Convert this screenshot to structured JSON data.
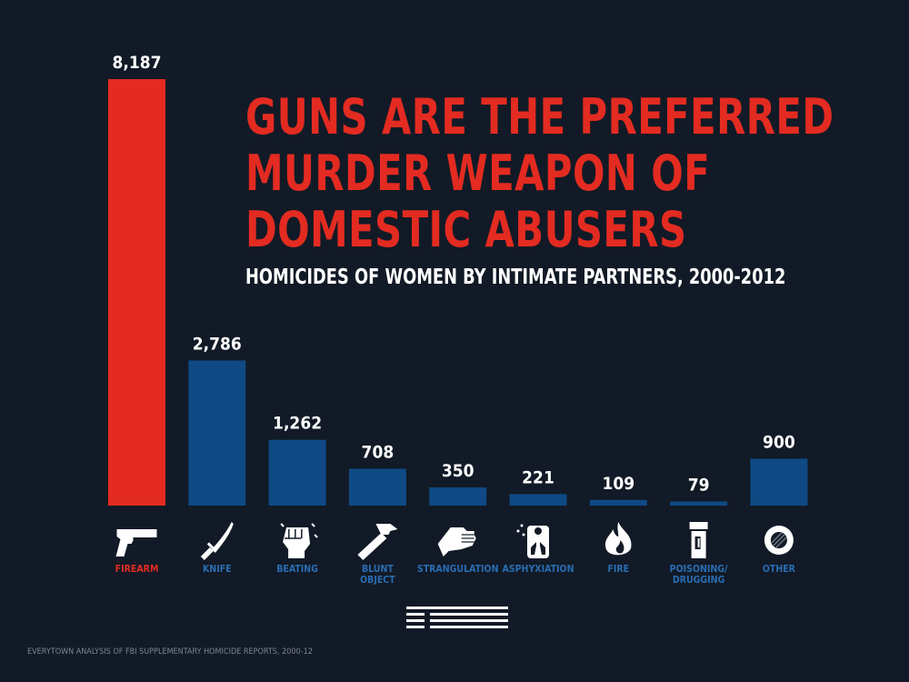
{
  "chart_data": {
    "type": "bar",
    "title_lines": [
      "GUNS ARE THE PREFERRED",
      "MURDER WEAPON OF",
      "DOMESTIC ABUSERS"
    ],
    "subtitle": "HOMICIDES OF WOMEN BY INTIMATE PARTNERS, 2000-2012",
    "categories": [
      "FIREARM",
      "KNIFE",
      "BEATING",
      "BLUNT OBJECT",
      "STRANGULATION",
      "ASPHYXIATION",
      "FIRE",
      "POISONING/ DRUGGING",
      "OTHER"
    ],
    "category_label_lines": [
      [
        "FIREARM"
      ],
      [
        "KNIFE"
      ],
      [
        "BEATING"
      ],
      [
        "BLUNT",
        "OBJECT"
      ],
      [
        "STRANGULATION"
      ],
      [
        "ASPHYXIATION"
      ],
      [
        "FIRE"
      ],
      [
        "POISONING/",
        "DRUGGING"
      ],
      [
        "OTHER"
      ]
    ],
    "values": [
      8187,
      2786,
      1262,
      708,
      350,
      221,
      109,
      79,
      900
    ],
    "value_labels": [
      "8,187",
      "2,786",
      "1,262",
      "708",
      "350",
      "221",
      "109",
      "79",
      "900"
    ],
    "icons": [
      "handgun-icon",
      "knife-icon",
      "fist-icon",
      "hammer-icon",
      "hand-icon",
      "lungs-icon",
      "flame-icon",
      "pill-bottle-icon",
      "circle-icon"
    ],
    "ylim": [
      0,
      8187
    ],
    "grid": false,
    "legend": "none",
    "colors": {
      "highlight": "#e32b21",
      "bar": "#0f4a85",
      "label": "#2a6db3",
      "value_text": "#ffffff",
      "background": "#111a26"
    }
  },
  "source": "EVERYTOWN ANALYSIS OF FBI SUPPLEMENTARY HOMICIDE REPORTS, 2000-12"
}
